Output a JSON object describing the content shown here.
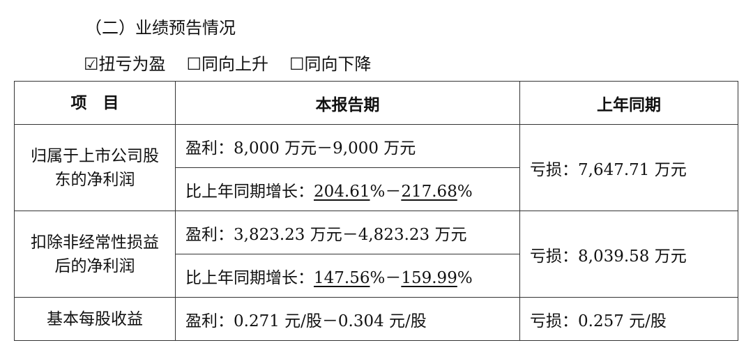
{
  "section_title": "（二）业绩预告情况",
  "options": [
    {
      "label": "☑扭亏为盈",
      "checked": true
    },
    {
      "label": "☐同向上升",
      "checked": false
    },
    {
      "label": "☐同向下降",
      "checked": false
    }
  ],
  "table": {
    "headers": [
      "项　目",
      "本报告期",
      "上年同期"
    ],
    "rows": [
      {
        "item": "归属于上市公司股东的净利润",
        "profit": "盈利：8,000 万元－9,000 万元",
        "growth_prefix": "比上年同期增长：",
        "growth_low": "204.61",
        "growth_high": "217.68",
        "prior": "亏损：7,647.71 万元"
      },
      {
        "item": "扣除非经常性损益后的净利润",
        "profit": "盈利：3,823.23 万元－4,823.23 万元",
        "growth_prefix": "比上年同期增长：",
        "growth_low": "147.56",
        "growth_high": "159.99",
        "prior": "亏损：8,039.58 万元"
      },
      {
        "item": "基本每股收益",
        "profit": "盈利：0.271 元/股－0.304 元/股",
        "prior": "亏损：0.257 元/股"
      }
    ]
  }
}
